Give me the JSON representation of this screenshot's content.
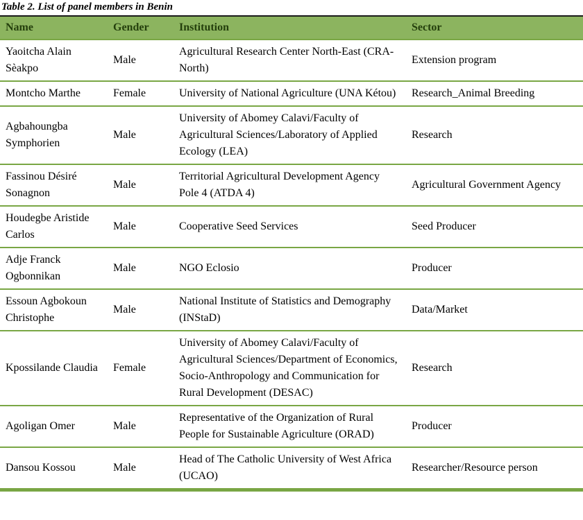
{
  "caption": "Table 2. List of panel members in Benin",
  "colors": {
    "header_bg": "#8CB45F",
    "header_text": "#243F0C",
    "border_green": "#79A644",
    "caption_rule": "#1a1a1a",
    "body_text": "#000000"
  },
  "table": {
    "headers": [
      "Name",
      "Gender",
      "Institution",
      "Sector"
    ],
    "rows": [
      {
        "name": "Yaoitcha Alain Sèakpo",
        "gender": "Male",
        "institution": "Agricultural Research Center North-East (CRA-North)",
        "sector": "Extension program"
      },
      {
        "name": "Montcho Marthe",
        "gender": "Female",
        "institution": "University of National Agriculture (UNA Kétou)",
        "sector": "Research_Animal Breeding"
      },
      {
        "name": "Agbahoungba Symphorien",
        "gender": "Male",
        "institution": "University of Abomey Calavi/Faculty of Agricultural Sciences/Laboratory of Applied Ecology (LEA)",
        "sector": "Research"
      },
      {
        "name": "Fassinou Désiré Sonagnon",
        "gender": "Male",
        "institution": "Territorial Agricultural Development Agency Pole 4 (ATDA 4)",
        "sector": "Agricultural Government Agency"
      },
      {
        "name": "Houdegbe Aristide Carlos",
        "gender": "Male",
        "institution": "Cooperative Seed Services",
        "sector": "Seed Producer"
      },
      {
        "name": "Adje Franck Ogbonnikan",
        "gender": "Male",
        "institution": "NGO Eclosio",
        "sector": "Producer"
      },
      {
        "name": "Essoun Agbokoun Christophe",
        "gender": "Male",
        "institution": "National Institute of Statistics and Demography (INStaD)",
        "sector": "Data/Market"
      },
      {
        "name": "Kpossilande Claudia",
        "gender": "Female",
        "institution": "University of Abomey Calavi/Faculty of Agricultural Sciences/Department of Economics, Socio-Anthropology and Communication for Rural Development (DESAC)",
        "sector": "Research"
      },
      {
        "name": "Agoligan Omer",
        "gender": "Male",
        "institution": "Representative of the Organization of Rural People for Sustainable Agriculture (ORAD)",
        "sector": "Producer"
      },
      {
        "name": "Dansou Kossou",
        "gender": "Male",
        "institution": "Head of The Catholic University of West Africa (UCAO)",
        "sector": "Researcher/Resource person"
      }
    ]
  }
}
